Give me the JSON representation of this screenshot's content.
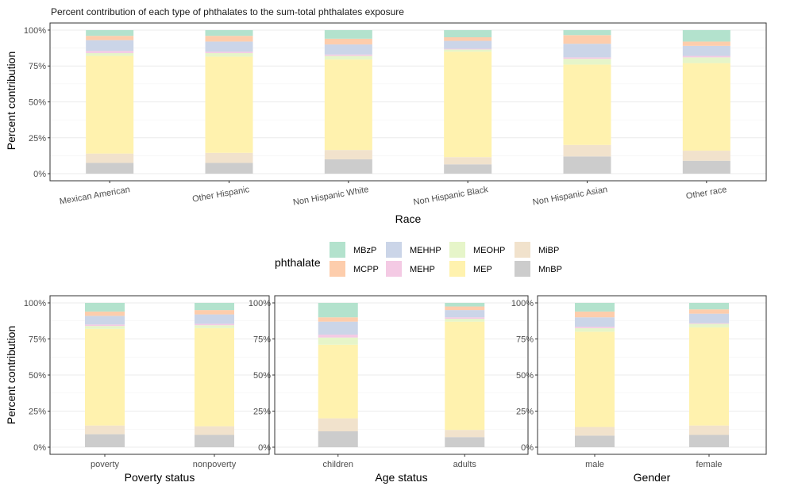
{
  "colors": {
    "MBzP": "#b3e2cd",
    "MCPP": "#fdcdac",
    "MEHHP": "#cbd5e8",
    "MEHP": "#f4cae4",
    "MEOHP": "#e6f5c9",
    "MEP": "#fff2ae",
    "MiBP": "#f1e2cc",
    "MnBP": "#cccccc"
  },
  "legend": {
    "title": "phthalate",
    "items": [
      "MBzP",
      "MCPP",
      "MEHHP",
      "MEHP",
      "MEOHP",
      "MEP",
      "MiBP",
      "MnBP"
    ]
  },
  "chart_data": [
    {
      "type": "bar",
      "stacked": true,
      "title": "Percent contribution of each type of phthalates to the sum-total phthalates exposure",
      "xlabel": "Race",
      "ylabel": "Percent contribution",
      "ylim": [
        0,
        100
      ],
      "yticks": [
        "0%",
        "25%",
        "50%",
        "75%",
        "100%"
      ],
      "categories": [
        "Mexican American",
        "Other Hispanic",
        "Non Hispanic White",
        "Non Hispanic Black",
        "Non Hispanic Asian",
        "Other race"
      ],
      "series": [
        {
          "name": "MnBP",
          "values": [
            7.5,
            7.5,
            10,
            6.5,
            12,
            9
          ]
        },
        {
          "name": "MiBP",
          "values": [
            6.5,
            7,
            6.5,
            5,
            8,
            7
          ]
        },
        {
          "name": "MEP",
          "values": [
            68,
            67,
            63,
            73.5,
            56,
            61
          ]
        },
        {
          "name": "MEOHP",
          "values": [
            2,
            2.5,
            2.5,
            1.5,
            4,
            4
          ]
        },
        {
          "name": "MEHP",
          "values": [
            1.5,
            1,
            1,
            0.5,
            1,
            1
          ]
        },
        {
          "name": "MEHHP",
          "values": [
            7.5,
            7,
            7,
            5.5,
            9.5,
            7
          ]
        },
        {
          "name": "MCPP",
          "values": [
            3,
            4,
            4,
            2.5,
            6,
            3
          ]
        },
        {
          "name": "MBzP",
          "values": [
            4,
            4,
            6,
            5,
            3.5,
            8
          ]
        }
      ]
    },
    {
      "type": "bar",
      "stacked": true,
      "xlabel": "Poverty status",
      "ylabel": "Percent contribution",
      "ylim": [
        0,
        100
      ],
      "yticks": [
        "0%",
        "25%",
        "50%",
        "75%",
        "100%"
      ],
      "categories": [
        "poverty",
        "nonpoverty"
      ],
      "series": [
        {
          "name": "MnBP",
          "values": [
            9,
            8.5
          ]
        },
        {
          "name": "MiBP",
          "values": [
            6,
            6
          ]
        },
        {
          "name": "MEP",
          "values": [
            67,
            68
          ]
        },
        {
          "name": "MEOHP",
          "values": [
            2,
            2
          ]
        },
        {
          "name": "MEHP",
          "values": [
            1,
            1
          ]
        },
        {
          "name": "MEHHP",
          "values": [
            6,
            6.5
          ]
        },
        {
          "name": "MCPP",
          "values": [
            3,
            3
          ]
        },
        {
          "name": "MBzP",
          "values": [
            6,
            5
          ]
        }
      ]
    },
    {
      "type": "bar",
      "stacked": true,
      "xlabel": "Age status",
      "ylim": [
        0,
        100
      ],
      "yticks": [
        "0%",
        "25%",
        "50%",
        "75%",
        "100%"
      ],
      "categories": [
        "children",
        "adults"
      ],
      "series": [
        {
          "name": "MnBP",
          "values": [
            11,
            7
          ]
        },
        {
          "name": "MiBP",
          "values": [
            9,
            5
          ]
        },
        {
          "name": "MEP",
          "values": [
            51,
            75
          ]
        },
        {
          "name": "MEOHP",
          "values": [
            5,
            2
          ]
        },
        {
          "name": "MEHP",
          "values": [
            2,
            1
          ]
        },
        {
          "name": "MEHHP",
          "values": [
            9,
            5
          ]
        },
        {
          "name": "MCPP",
          "values": [
            3,
            2.5
          ]
        },
        {
          "name": "MBzP",
          "values": [
            10,
            2.5
          ]
        }
      ]
    },
    {
      "type": "bar",
      "stacked": true,
      "xlabel": "Gender",
      "ylim": [
        0,
        100
      ],
      "yticks": [
        "0%",
        "25%",
        "50%",
        "75%",
        "100%"
      ],
      "categories": [
        "male",
        "female"
      ],
      "series": [
        {
          "name": "MnBP",
          "values": [
            8,
            8.5
          ]
        },
        {
          "name": "MiBP",
          "values": [
            6,
            6.5
          ]
        },
        {
          "name": "MEP",
          "values": [
            66,
            68
          ]
        },
        {
          "name": "MEOHP",
          "values": [
            2.5,
            2.5
          ]
        },
        {
          "name": "MEHP",
          "values": [
            1,
            0.5
          ]
        },
        {
          "name": "MEHHP",
          "values": [
            6.5,
            6.5
          ]
        },
        {
          "name": "MCPP",
          "values": [
            4,
            3
          ]
        },
        {
          "name": "MBzP",
          "values": [
            6,
            4.5
          ]
        }
      ]
    }
  ]
}
